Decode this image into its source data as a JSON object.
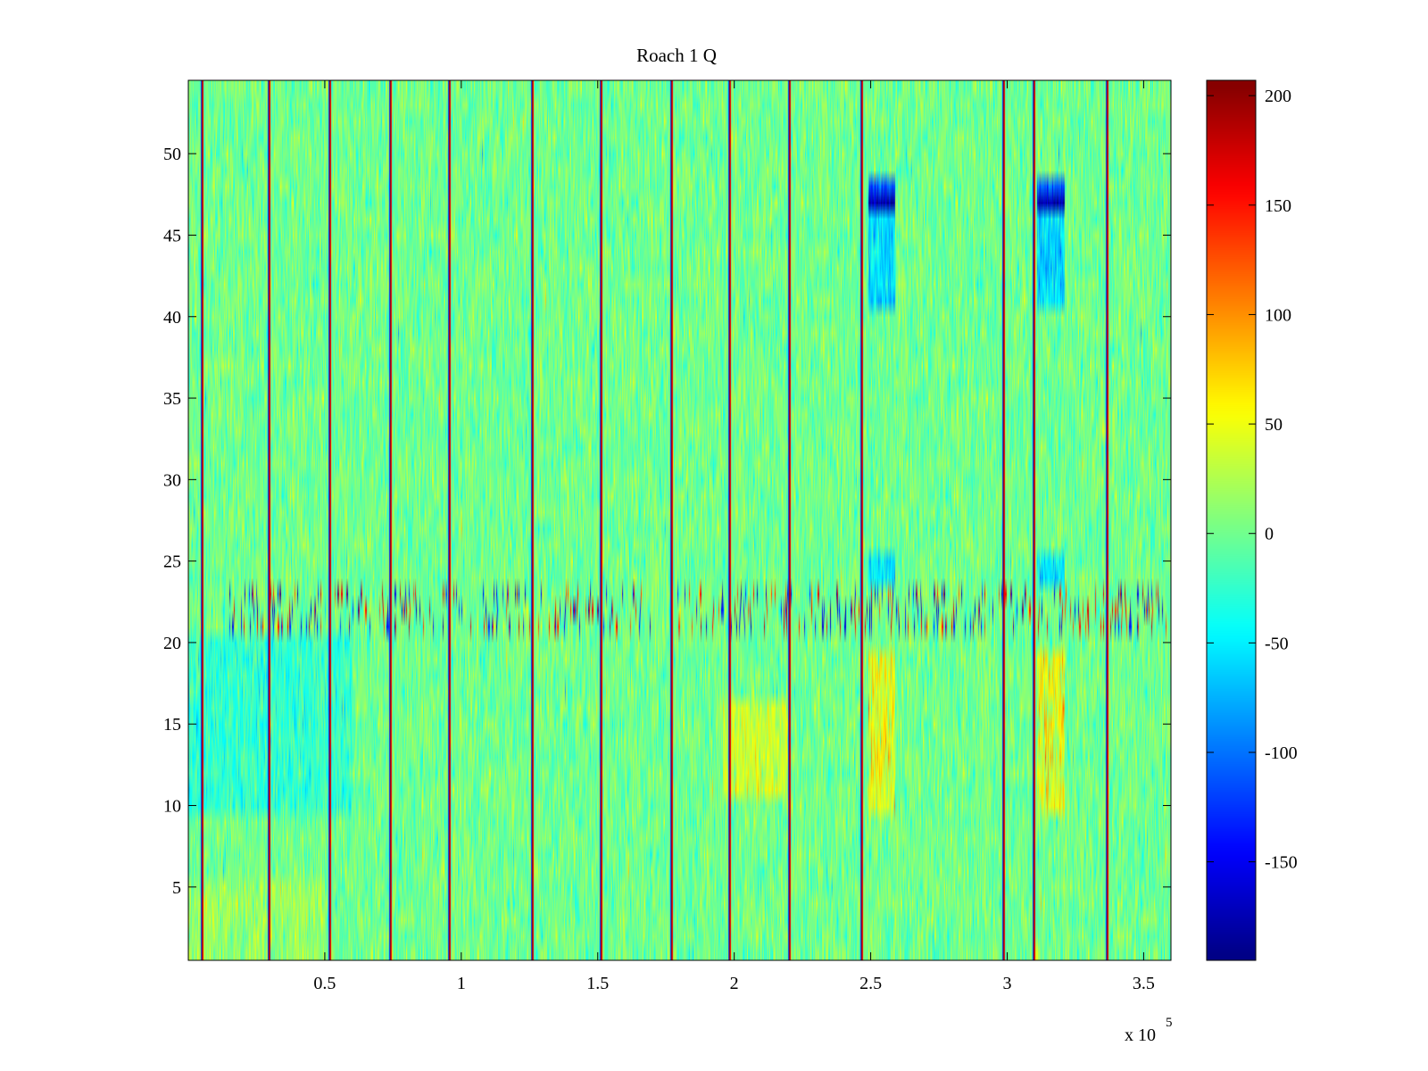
{
  "chart_data": {
    "type": "heatmap",
    "title": "Roach 1 Q",
    "xlabel": "",
    "ylabel": "",
    "x_range": [
      0,
      360000
    ],
    "y_range": [
      0.5,
      54.5
    ],
    "x_ticks": [
      50000,
      100000,
      150000,
      200000,
      250000,
      300000,
      350000
    ],
    "x_tick_labels": [
      "0.5",
      "1",
      "1.5",
      "2",
      "2.5",
      "3",
      "3.5"
    ],
    "x_exponent_label": "x 10",
    "x_exponent_power": "5",
    "y_ticks": [
      5,
      10,
      15,
      20,
      25,
      30,
      35,
      40,
      45,
      50
    ],
    "y_tick_labels": [
      "5",
      "10",
      "15",
      "20",
      "25",
      "30",
      "35",
      "40",
      "45",
      "50"
    ],
    "rows": 54,
    "colormap": "jet",
    "color_range": [
      -195,
      207
    ],
    "colorbar_ticks": [
      200,
      150,
      100,
      50,
      0,
      -50,
      -100,
      -150
    ],
    "colorbar_tick_labels": [
      "200",
      "150",
      "100",
      "50",
      "0",
      "-50",
      "-100",
      "-150"
    ],
    "baseline_value": 0,
    "stripe_columns_x": [
      5000,
      29500,
      51500,
      74000,
      95500,
      126000,
      151000,
      177000,
      198000,
      220000,
      246500,
      298500,
      309500,
      336500
    ],
    "stripe_value": 200,
    "notes": "Dense noisy field centered near 0 with vertical extreme-value stripes and an anomalous band at rows 21-23; elevated regions near x=2.5e5 and x=3.15e5."
  },
  "colors": {
    "axis": "#000000",
    "background": "#ffffff"
  }
}
